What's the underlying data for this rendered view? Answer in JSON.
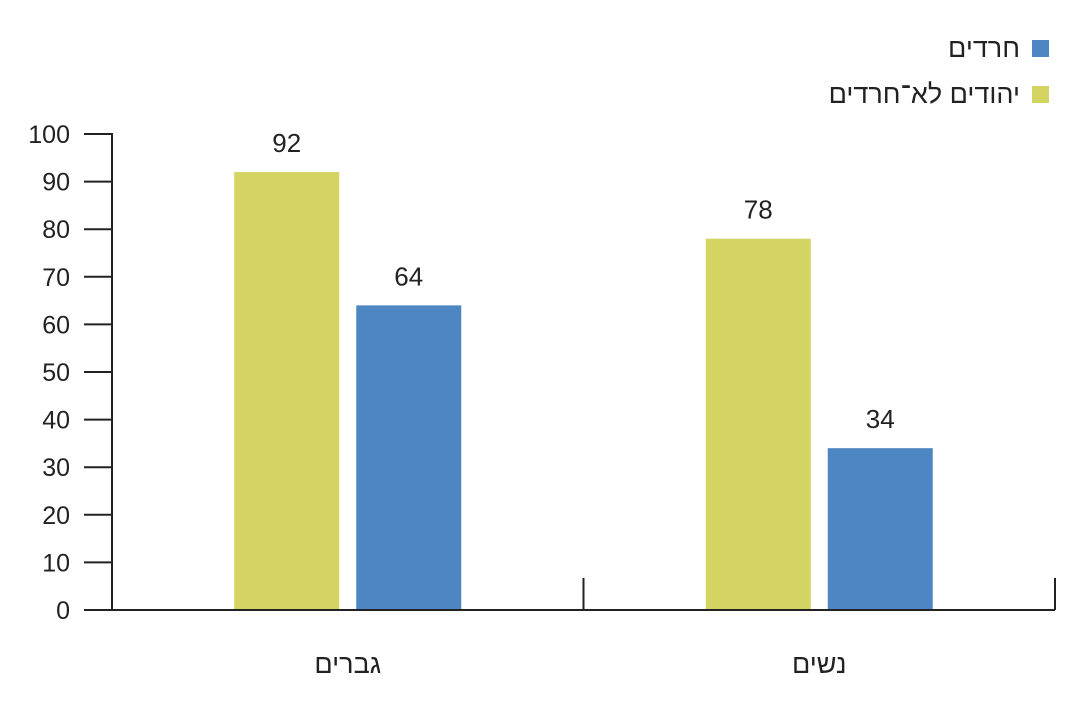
{
  "chart_data": {
    "type": "bar",
    "categories": [
      "גברים",
      "נשים"
    ],
    "series": [
      {
        "name": "יהודים לא־חרדים",
        "color": "#d4d463",
        "values": [
          92,
          78
        ]
      },
      {
        "name": "חרדים",
        "color": "#4e86c4",
        "values": [
          64,
          34
        ]
      }
    ],
    "ylim": [
      0,
      100
    ],
    "yticks": [
      0,
      10,
      20,
      30,
      40,
      50,
      60,
      70,
      80,
      90,
      100
    ],
    "title": "",
    "xlabel": "",
    "ylabel": "",
    "grid": false,
    "legend_position": "top-right"
  },
  "legend": [
    {
      "label": "חרדים",
      "color": "#4e86c4"
    },
    {
      "label": "יהודים לא־חרדים",
      "color": "#d4d463"
    }
  ]
}
